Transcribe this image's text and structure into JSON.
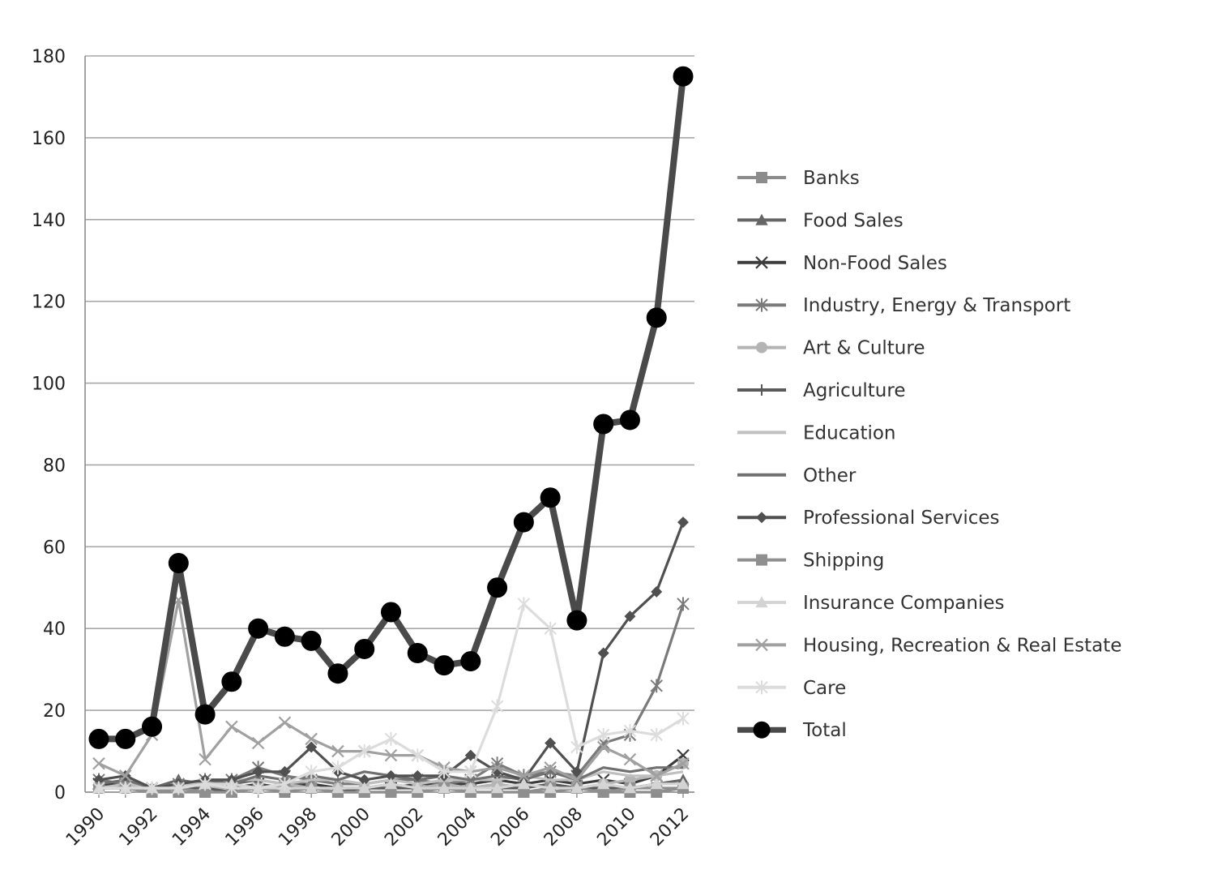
{
  "chart_data": {
    "type": "line",
    "title": "",
    "xlabel": "",
    "ylabel": "",
    "ylim": [
      0,
      180
    ],
    "yticks": [
      0,
      20,
      40,
      60,
      80,
      100,
      120,
      140,
      160,
      180
    ],
    "grid": "horizontal",
    "legend_position": "right",
    "x_tick_labels": [
      "1990",
      "1992",
      "1994",
      "1996",
      "1998",
      "2000",
      "2002",
      "2004",
      "2006",
      "2008",
      "2010",
      "2012"
    ],
    "x": [
      1990,
      1991,
      1992,
      1993,
      1994,
      1995,
      1996,
      1997,
      1998,
      1999,
      2000,
      2001,
      2002,
      2003,
      2004,
      2005,
      2006,
      2007,
      2008,
      2009,
      2010,
      2011,
      2012
    ],
    "series": [
      {
        "name": "Banks",
        "color": "#8c8c8c",
        "marker": "square",
        "values": [
          1,
          1,
          0,
          0,
          0,
          0,
          1,
          0,
          1,
          0,
          0,
          0,
          0,
          1,
          0,
          0,
          0,
          0,
          1,
          0,
          0,
          0,
          1
        ]
      },
      {
        "name": "Food Sales",
        "color": "#666666",
        "marker": "triangle",
        "values": [
          2,
          1,
          1,
          3,
          2,
          2,
          3,
          2,
          2,
          1,
          1,
          2,
          1,
          1,
          1,
          2,
          1,
          2,
          1,
          1,
          1,
          2,
          3
        ]
      },
      {
        "name": "Non-Food Sales",
        "color": "#3c3c3c",
        "marker": "x",
        "values": [
          2,
          2,
          1,
          1,
          2,
          1,
          2,
          1,
          2,
          1,
          1,
          1,
          2,
          2,
          2,
          3,
          2,
          3,
          2,
          3,
          2,
          4,
          9
        ]
      },
      {
        "name": "Industry, Energy & Transport",
        "color": "#7a7a7a",
        "marker": "asterisk",
        "values": [
          3,
          2,
          1,
          2,
          3,
          3,
          6,
          4,
          3,
          2,
          2,
          3,
          3,
          2,
          3,
          7,
          4,
          5,
          4,
          12,
          14,
          26,
          46
        ]
      },
      {
        "name": "Art & Culture",
        "color": "#b4b4b4",
        "marker": "circle",
        "values": [
          1,
          1,
          0,
          1,
          1,
          1,
          1,
          2,
          1,
          1,
          1,
          1,
          1,
          2,
          1,
          2,
          1,
          2,
          1,
          2,
          3,
          4,
          7
        ]
      },
      {
        "name": "Agriculture",
        "color": "#5a5a5a",
        "marker": "plus",
        "values": [
          1,
          1,
          0,
          1,
          1,
          0,
          1,
          1,
          1,
          0,
          1,
          1,
          1,
          1,
          1,
          1,
          1,
          2,
          1,
          1,
          1,
          2,
          2
        ]
      },
      {
        "name": "Education",
        "color": "#c0c0c0",
        "marker": "none",
        "values": [
          1,
          2,
          1,
          2,
          2,
          3,
          3,
          2,
          3,
          3,
          2,
          3,
          2,
          3,
          3,
          3,
          4,
          3,
          3,
          5,
          4,
          4,
          5
        ]
      },
      {
        "name": "Other",
        "color": "#707070",
        "marker": "none",
        "values": [
          2,
          3,
          1,
          2,
          3,
          2,
          4,
          3,
          4,
          3,
          5,
          4,
          3,
          4,
          3,
          4,
          3,
          5,
          3,
          6,
          5,
          6,
          6
        ]
      },
      {
        "name": "Professional Services",
        "color": "#505050",
        "marker": "diamond",
        "values": [
          3,
          4,
          1,
          2,
          3,
          3,
          5,
          5,
          11,
          5,
          3,
          4,
          4,
          4,
          9,
          5,
          3,
          12,
          5,
          34,
          43,
          49,
          66
        ]
      },
      {
        "name": "Shipping",
        "color": "#8f8f8f",
        "marker": "square",
        "values": [
          1,
          1,
          0,
          1,
          0,
          0,
          1,
          1,
          1,
          0,
          0,
          0,
          0,
          1,
          0,
          0,
          0,
          1,
          1,
          0,
          1,
          1,
          1
        ]
      },
      {
        "name": "Insurance Companies",
        "color": "#d4d4d4",
        "marker": "triangle",
        "values": [
          1,
          1,
          1,
          1,
          2,
          2,
          1,
          1,
          1,
          1,
          1,
          2,
          1,
          1,
          1,
          1,
          2,
          1,
          1,
          2,
          1,
          2,
          2
        ]
      },
      {
        "name": "Housing, Recreation & Real Estate",
        "color": "#a0a0a0",
        "marker": "x",
        "values": [
          7,
          4,
          14,
          47,
          8,
          16,
          12,
          17,
          13,
          10,
          10,
          9,
          9,
          6,
          5,
          6,
          4,
          6,
          3,
          11,
          8,
          4,
          7
        ]
      },
      {
        "name": "Care",
        "color": "#dcdcdc",
        "marker": "asterisk",
        "values": [
          1,
          1,
          1,
          1,
          2,
          1,
          1,
          2,
          5,
          6,
          10,
          13,
          9,
          5,
          5,
          21,
          46,
          40,
          11,
          14,
          15,
          14,
          18
        ]
      },
      {
        "name": "Total",
        "color": "#4a4a4a",
        "marker": "circle-black",
        "emphasis": true,
        "values": [
          13,
          13,
          16,
          56,
          19,
          27,
          40,
          38,
          37,
          29,
          35,
          44,
          34,
          31,
          32,
          50,
          66,
          72,
          42,
          90,
          91,
          116,
          175
        ]
      }
    ]
  }
}
